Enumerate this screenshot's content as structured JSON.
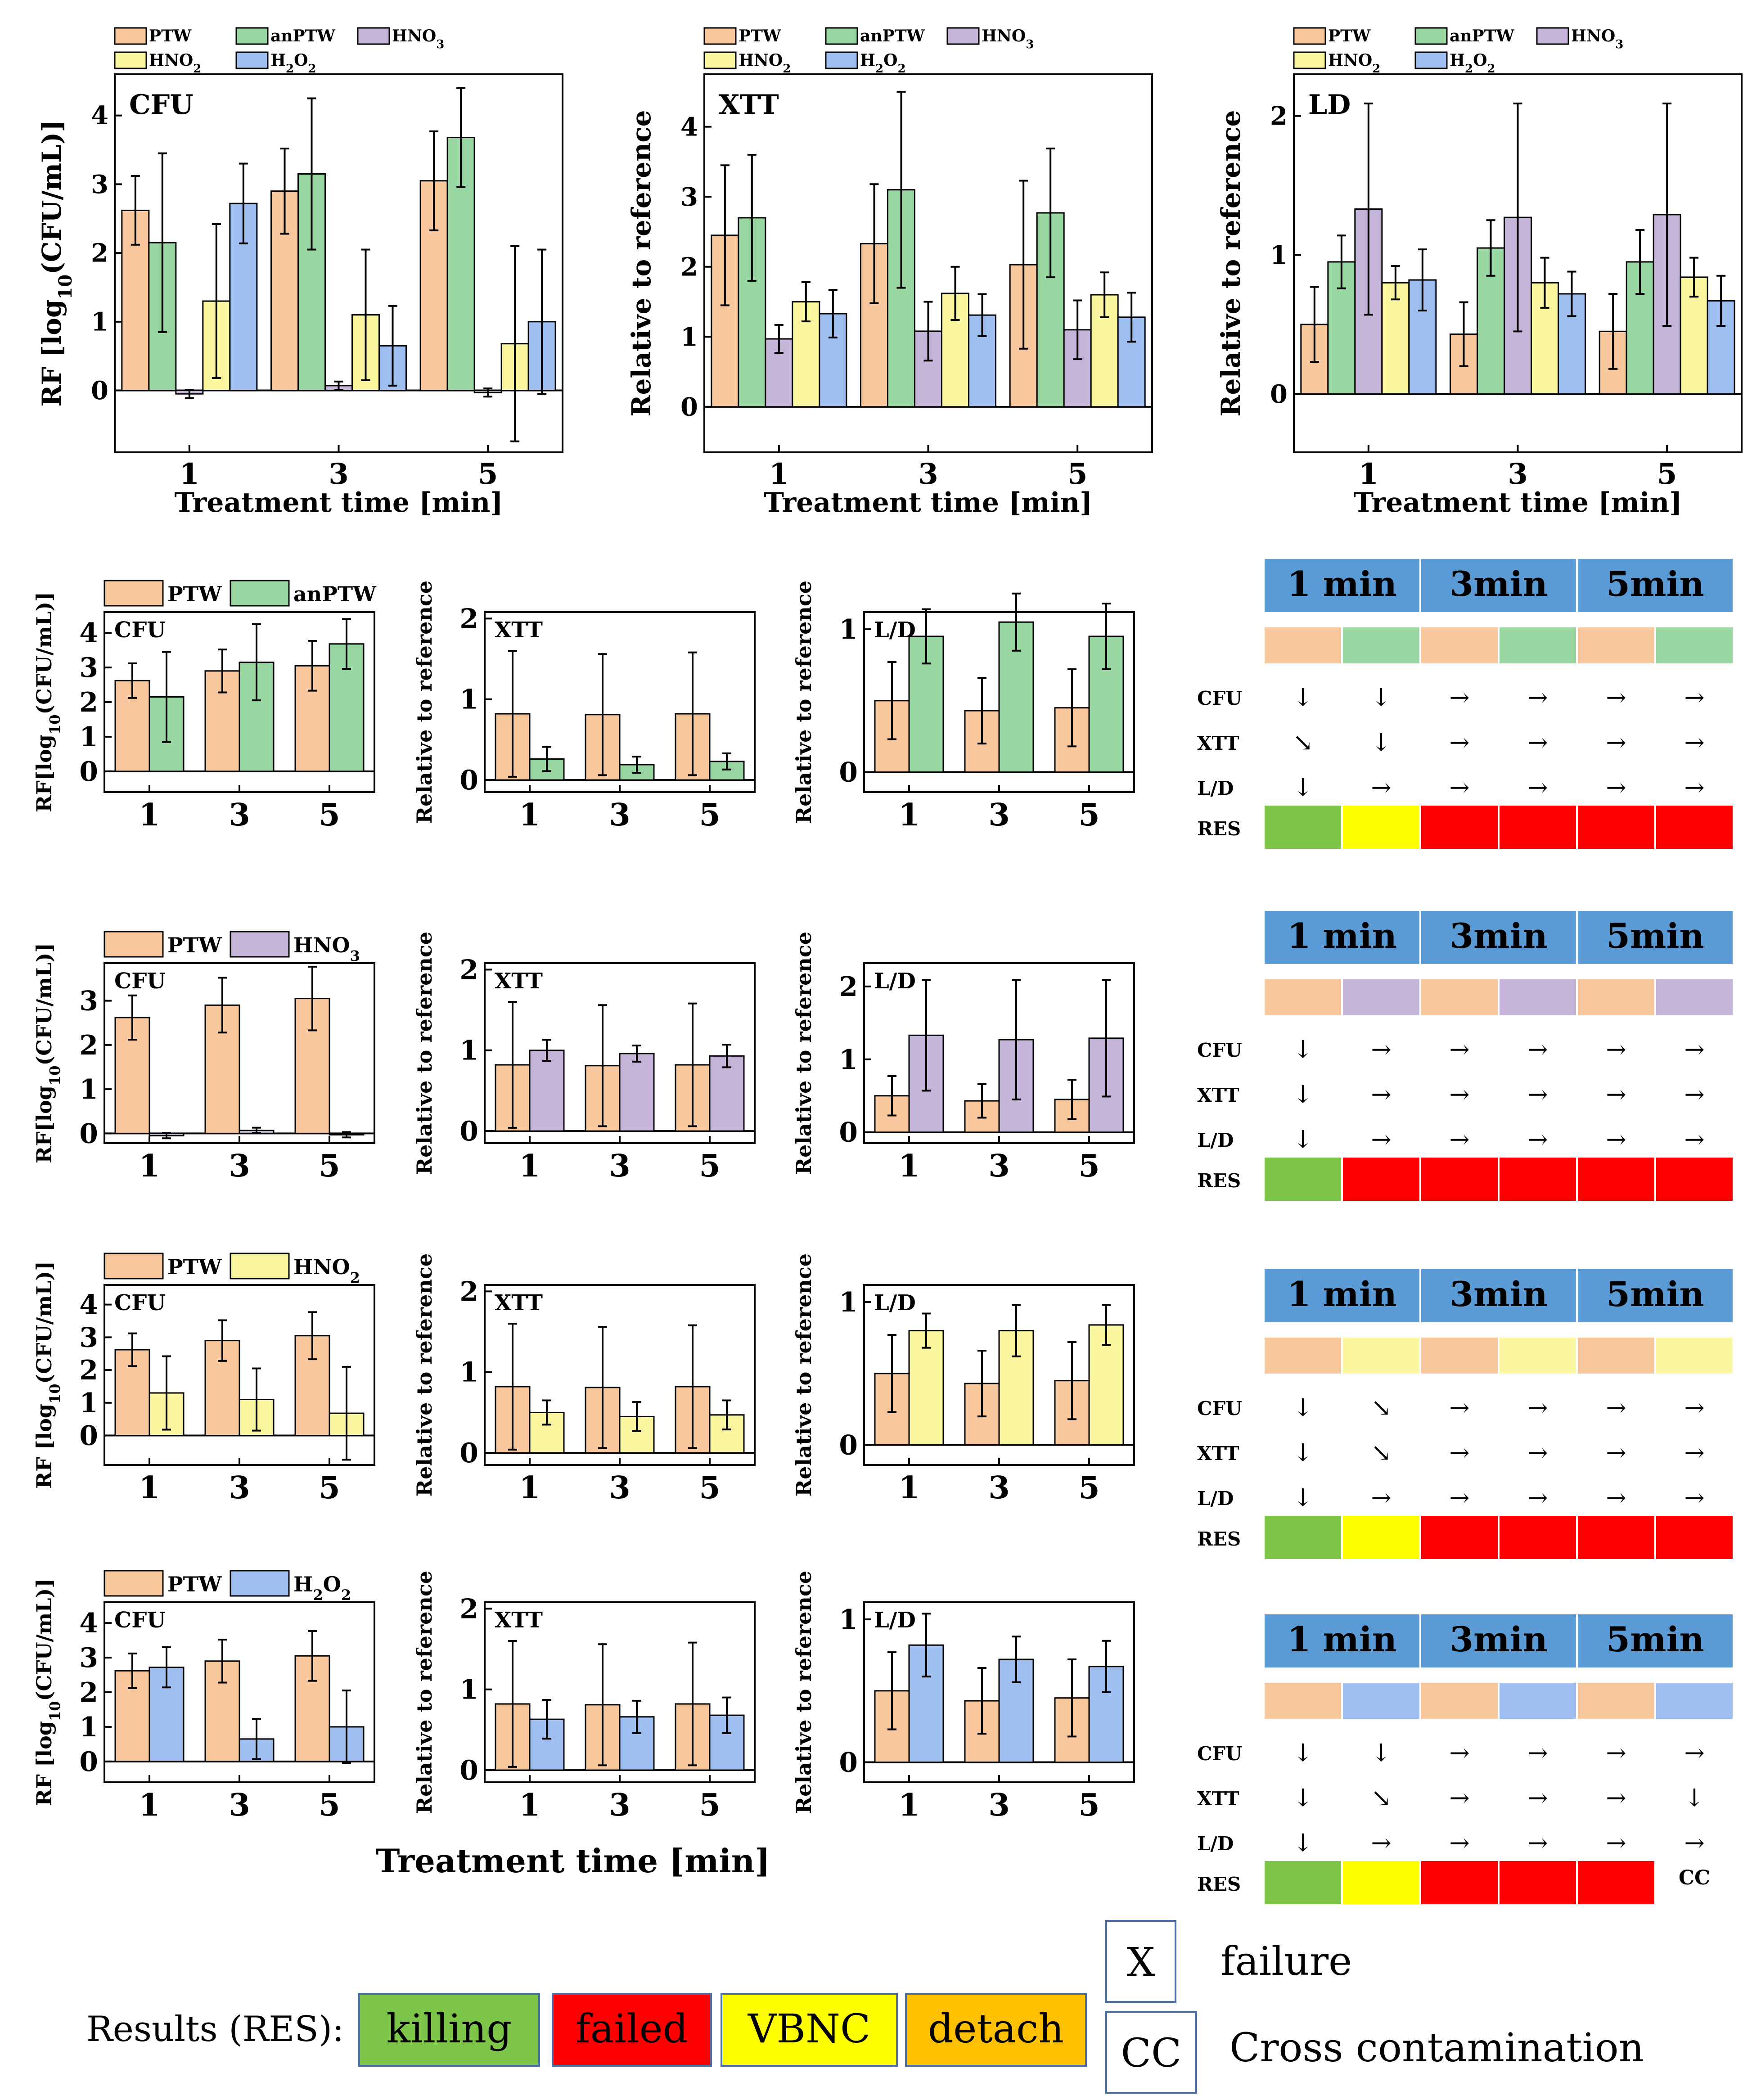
{
  "colors": {
    "PTW": "#f9c79e",
    "anPTW": "#98d6a2",
    "HNO3": "#c4b5d9",
    "HNO2": "#fbf6a0",
    "H2O2": "#9fbff0",
    "header": "#5b9bd5",
    "killing": "#7ec64a",
    "failed": "#ff0000",
    "VBNC": "#ffff00",
    "detach": "#ffc000"
  },
  "chart_data": [
    {
      "id": "top-cfu",
      "type": "bar",
      "panel_label": "CFU",
      "ylabel": "RF [log10(CFU/mL)]",
      "xlabel": "Treatment time [min]",
      "categories": [
        "1",
        "3",
        "5"
      ],
      "ylim": [
        -0.9,
        4.6
      ],
      "yticks": [
        0,
        1,
        2,
        3,
        4
      ],
      "legend": [
        "PTW",
        "anPTW",
        "HNO3",
        "HNO2",
        "H2O2"
      ],
      "series": [
        {
          "name": "PTW",
          "values": [
            2.62,
            2.9,
            3.05
          ],
          "err": [
            0.5,
            0.62,
            0.72
          ]
        },
        {
          "name": "anPTW",
          "values": [
            2.15,
            3.15,
            3.68
          ],
          "err": [
            1.3,
            1.1,
            0.72
          ]
        },
        {
          "name": "HNO3",
          "values": [
            -0.05,
            0.07,
            -0.03
          ],
          "err": [
            0.06,
            0.06,
            0.06
          ]
        },
        {
          "name": "HNO2",
          "values": [
            1.3,
            1.1,
            0.68
          ],
          "err": [
            1.12,
            0.95,
            1.42
          ]
        },
        {
          "name": "H2O2",
          "values": [
            2.72,
            0.65,
            1.0
          ],
          "err": [
            0.58,
            0.58,
            1.05
          ]
        }
      ]
    },
    {
      "id": "top-xtt",
      "type": "bar",
      "panel_label": "XTT",
      "ylabel": "Relative to reference",
      "xlabel": "Treatment time [min]",
      "categories": [
        "1",
        "3",
        "5"
      ],
      "ylim": [
        -0.65,
        4.75
      ],
      "yticks": [
        0,
        1,
        2,
        3,
        4
      ],
      "legend": [
        "PTW",
        "anPTW",
        "HNO3",
        "HNO2",
        "H2O2"
      ],
      "series": [
        {
          "name": "PTW",
          "values": [
            2.45,
            2.33,
            2.03
          ],
          "err": [
            1.0,
            0.85,
            1.2
          ]
        },
        {
          "name": "anPTW",
          "values": [
            2.7,
            3.1,
            2.77
          ],
          "err": [
            0.9,
            1.4,
            0.92
          ]
        },
        {
          "name": "HNO3",
          "values": [
            0.97,
            1.08,
            1.1
          ],
          "err": [
            0.2,
            0.42,
            0.42
          ]
        },
        {
          "name": "HNO2",
          "values": [
            1.5,
            1.62,
            1.6
          ],
          "err": [
            0.28,
            0.38,
            0.32
          ]
        },
        {
          "name": "H2O2",
          "values": [
            1.33,
            1.31,
            1.28
          ],
          "err": [
            0.34,
            0.3,
            0.35
          ]
        }
      ]
    },
    {
      "id": "top-ld",
      "type": "bar",
      "panel_label": "LD",
      "ylabel": "Relative to reference",
      "xlabel": "Treatment time [min]",
      "categories": [
        "1",
        "3",
        "5"
      ],
      "ylim": [
        -0.42,
        2.3
      ],
      "yticks": [
        0,
        1,
        2
      ],
      "legend": [
        "PTW",
        "anPTW",
        "HNO3",
        "HNO2",
        "H2O2"
      ],
      "series": [
        {
          "name": "PTW",
          "values": [
            0.5,
            0.43,
            0.45
          ],
          "err": [
            0.27,
            0.23,
            0.27
          ]
        },
        {
          "name": "anPTW",
          "values": [
            0.95,
            1.05,
            0.95
          ],
          "err": [
            0.19,
            0.2,
            0.23
          ]
        },
        {
          "name": "HNO3",
          "values": [
            1.33,
            1.27,
            1.29
          ],
          "err": [
            0.76,
            0.82,
            0.8
          ]
        },
        {
          "name": "HNO2",
          "values": [
            0.8,
            0.8,
            0.84
          ],
          "err": [
            0.12,
            0.18,
            0.14
          ]
        },
        {
          "name": "H2O2",
          "values": [
            0.82,
            0.72,
            0.67
          ],
          "err": [
            0.22,
            0.16,
            0.18
          ]
        }
      ]
    },
    {
      "id": "r1-cfu",
      "type": "bar",
      "panel_label": "CFU",
      "ylabel": "RF[log10(CFU/mL)]",
      "categories": [
        "1",
        "3",
        "5"
      ],
      "ylim": [
        -0.6,
        4.6
      ],
      "yticks": [
        0,
        1,
        2,
        3,
        4
      ],
      "legend": [
        "PTW",
        "anPTW"
      ],
      "series": [
        {
          "name": "PTW",
          "values": [
            2.62,
            2.9,
            3.05
          ],
          "err": [
            0.5,
            0.62,
            0.72
          ]
        },
        {
          "name": "anPTW",
          "values": [
            2.15,
            3.15,
            3.68
          ],
          "err": [
            1.3,
            1.1,
            0.72
          ]
        }
      ]
    },
    {
      "id": "r1-xtt",
      "type": "bar",
      "panel_label": "XTT",
      "ylabel": "Relative to reference",
      "categories": [
        "1",
        "3",
        "5"
      ],
      "ylim": [
        -0.15,
        2.08
      ],
      "yticks": [
        0,
        1,
        2
      ],
      "legend": [],
      "series": [
        {
          "name": "PTW",
          "values": [
            0.82,
            0.81,
            0.82
          ],
          "err": [
            0.78,
            0.75,
            0.76
          ]
        },
        {
          "name": "anPTW",
          "values": [
            0.26,
            0.19,
            0.23
          ],
          "err": [
            0.15,
            0.1,
            0.1
          ]
        }
      ]
    },
    {
      "id": "r1-ld",
      "type": "bar",
      "panel_label": "L/D",
      "ylabel": "Relative to reference",
      "categories": [
        "1",
        "3",
        "5"
      ],
      "ylim": [
        -0.14,
        1.12
      ],
      "yticks": [
        0,
        1
      ],
      "legend": [],
      "series": [
        {
          "name": "PTW",
          "values": [
            0.5,
            0.43,
            0.45
          ],
          "err": [
            0.27,
            0.23,
            0.27
          ]
        },
        {
          "name": "anPTW",
          "values": [
            0.95,
            1.05,
            0.95
          ],
          "err": [
            0.19,
            0.2,
            0.23
          ]
        }
      ]
    },
    {
      "id": "r2-cfu",
      "type": "bar",
      "panel_label": "CFU",
      "ylabel": "RF[log10(CFU/mL)]",
      "categories": [
        "1",
        "3",
        "5"
      ],
      "ylim": [
        -0.22,
        3.85
      ],
      "yticks": [
        0,
        1,
        2,
        3
      ],
      "legend": [
        "PTW",
        "HNO3"
      ],
      "series": [
        {
          "name": "PTW",
          "values": [
            2.62,
            2.9,
            3.05
          ],
          "err": [
            0.5,
            0.62,
            0.72
          ]
        },
        {
          "name": "HNO3",
          "values": [
            -0.05,
            0.07,
            -0.03
          ],
          "err": [
            0.06,
            0.06,
            0.06
          ]
        }
      ]
    },
    {
      "id": "r2-xtt",
      "type": "bar",
      "panel_label": "XTT",
      "ylabel": "Relative to reference",
      "categories": [
        "1",
        "3",
        "5"
      ],
      "ylim": [
        -0.15,
        2.08
      ],
      "yticks": [
        0,
        1,
        2
      ],
      "legend": [],
      "series": [
        {
          "name": "PTW",
          "values": [
            0.82,
            0.81,
            0.82
          ],
          "err": [
            0.78,
            0.75,
            0.76
          ]
        },
        {
          "name": "HNO3",
          "values": [
            1.0,
            0.96,
            0.93
          ],
          "err": [
            0.13,
            0.1,
            0.14
          ]
        }
      ]
    },
    {
      "id": "r2-ld",
      "type": "bar",
      "panel_label": "L/D",
      "ylabel": "Relative to reference",
      "categories": [
        "1",
        "3",
        "5"
      ],
      "ylim": [
        -0.15,
        2.32
      ],
      "yticks": [
        0,
        1,
        2
      ],
      "legend": [],
      "series": [
        {
          "name": "PTW",
          "values": [
            0.5,
            0.43,
            0.45
          ],
          "err": [
            0.27,
            0.23,
            0.27
          ]
        },
        {
          "name": "HNO3",
          "values": [
            1.33,
            1.27,
            1.29
          ],
          "err": [
            0.76,
            0.82,
            0.8
          ]
        }
      ]
    },
    {
      "id": "r3-cfu",
      "type": "bar",
      "panel_label": "CFU",
      "ylabel": "RF [log10(CFU/mL)]",
      "categories": [
        "1",
        "3",
        "5"
      ],
      "ylim": [
        -0.9,
        4.6
      ],
      "yticks": [
        0,
        1,
        2,
        3,
        4
      ],
      "legend": [
        "PTW",
        "HNO2"
      ],
      "series": [
        {
          "name": "PTW",
          "values": [
            2.62,
            2.9,
            3.05
          ],
          "err": [
            0.5,
            0.62,
            0.72
          ]
        },
        {
          "name": "HNO2",
          "values": [
            1.3,
            1.1,
            0.68
          ],
          "err": [
            1.12,
            0.95,
            1.42
          ]
        }
      ]
    },
    {
      "id": "r3-xtt",
      "type": "bar",
      "panel_label": "XTT",
      "ylabel": "Relative to reference",
      "categories": [
        "1",
        "3",
        "5"
      ],
      "ylim": [
        -0.15,
        2.08
      ],
      "yticks": [
        0,
        1,
        2
      ],
      "legend": [],
      "series": [
        {
          "name": "PTW",
          "values": [
            0.82,
            0.81,
            0.82
          ],
          "err": [
            0.78,
            0.75,
            0.76
          ]
        },
        {
          "name": "HNO2",
          "values": [
            0.5,
            0.45,
            0.47
          ],
          "err": [
            0.15,
            0.18,
            0.18
          ]
        }
      ]
    },
    {
      "id": "r3-ld",
      "type": "bar",
      "panel_label": "L/D",
      "ylabel": "Relative to reference",
      "categories": [
        "1",
        "3",
        "5"
      ],
      "ylim": [
        -0.14,
        1.12
      ],
      "yticks": [
        0,
        1
      ],
      "legend": [],
      "series": [
        {
          "name": "PTW",
          "values": [
            0.5,
            0.43,
            0.45
          ],
          "err": [
            0.27,
            0.23,
            0.27
          ]
        },
        {
          "name": "HNO2",
          "values": [
            0.8,
            0.8,
            0.84
          ],
          "err": [
            0.12,
            0.18,
            0.14
          ]
        }
      ]
    },
    {
      "id": "r4-cfu",
      "type": "bar",
      "panel_label": "CFU",
      "ylabel": "RF [log10(CFU/mL)]",
      "categories": [
        "1",
        "3",
        "5"
      ],
      "ylim": [
        -0.6,
        4.6
      ],
      "yticks": [
        0,
        1,
        2,
        3,
        4
      ],
      "legend": [
        "PTW",
        "H2O2"
      ],
      "series": [
        {
          "name": "PTW",
          "values": [
            2.62,
            2.9,
            3.05
          ],
          "err": [
            0.5,
            0.62,
            0.72
          ]
        },
        {
          "name": "H2O2",
          "values": [
            2.72,
            0.65,
            1.0
          ],
          "err": [
            0.58,
            0.58,
            1.05
          ]
        }
      ]
    },
    {
      "id": "r4-xtt",
      "type": "bar",
      "panel_label": "XTT",
      "ylabel": "Relative to reference",
      "categories": [
        "1",
        "3",
        "5"
      ],
      "ylim": [
        -0.15,
        2.08
      ],
      "yticks": [
        0,
        1,
        2
      ],
      "legend": [],
      "series": [
        {
          "name": "PTW",
          "values": [
            0.82,
            0.81,
            0.82
          ],
          "err": [
            0.78,
            0.75,
            0.76
          ]
        },
        {
          "name": "H2O2",
          "values": [
            0.63,
            0.66,
            0.68
          ],
          "err": [
            0.24,
            0.2,
            0.22
          ]
        }
      ]
    },
    {
      "id": "r4-ld",
      "type": "bar",
      "panel_label": "L/D",
      "ylabel": "Relative to reference",
      "categories": [
        "1",
        "3",
        "5"
      ],
      "ylim": [
        -0.14,
        1.12
      ],
      "yticks": [
        0,
        1
      ],
      "legend": [],
      "series": [
        {
          "name": "PTW",
          "values": [
            0.5,
            0.43,
            0.45
          ],
          "err": [
            0.27,
            0.23,
            0.27
          ]
        },
        {
          "name": "H2O2",
          "values": [
            0.82,
            0.72,
            0.67
          ],
          "err": [
            0.22,
            0.16,
            0.18
          ]
        }
      ]
    }
  ],
  "bottom_xlabel": "Treatment time [min]",
  "result_tables": [
    {
      "headers": [
        "1 min",
        "3min",
        "5min"
      ],
      "pair": [
        "PTW",
        "anPTW"
      ],
      "row_labels": [
        "CFU",
        "XTT",
        "L/D",
        "RES"
      ],
      "arrows": [
        [
          "↓",
          "↓",
          "→",
          "→",
          "→",
          "→"
        ],
        [
          "↘",
          "↓",
          "→",
          "→",
          "→",
          "→"
        ],
        [
          "↓",
          "→",
          "→",
          "→",
          "→",
          "→"
        ]
      ],
      "res": [
        "killing",
        "VBNC",
        "failed",
        "failed",
        "failed",
        "failed"
      ]
    },
    {
      "headers": [
        "1 min",
        "3min",
        "5min"
      ],
      "pair": [
        "PTW",
        "HNO3"
      ],
      "row_labels": [
        "CFU",
        "XTT",
        "L/D",
        "RES"
      ],
      "arrows": [
        [
          "↓",
          "→",
          "→",
          "→",
          "→",
          "→"
        ],
        [
          "↓",
          "→",
          "→",
          "→",
          "→",
          "→"
        ],
        [
          "↓",
          "→",
          "→",
          "→",
          "→",
          "→"
        ]
      ],
      "res": [
        "killing",
        "failed",
        "failed",
        "failed",
        "failed",
        "failed"
      ]
    },
    {
      "headers": [
        "1 min",
        "3min",
        "5min"
      ],
      "pair": [
        "PTW",
        "HNO2"
      ],
      "row_labels": [
        "CFU",
        "XTT",
        "L/D",
        "RES"
      ],
      "arrows": [
        [
          "↓",
          "↘",
          "→",
          "→",
          "→",
          "→"
        ],
        [
          "↓",
          "↘",
          "→",
          "→",
          "→",
          "→"
        ],
        [
          "↓",
          "→",
          "→",
          "→",
          "→",
          "→"
        ]
      ],
      "res": [
        "killing",
        "VBNC",
        "failed",
        "failed",
        "failed",
        "failed"
      ]
    },
    {
      "headers": [
        "1 min",
        "3min",
        "5min"
      ],
      "pair": [
        "PTW",
        "H2O2"
      ],
      "row_labels": [
        "CFU",
        "XTT",
        "L/D",
        "RES"
      ],
      "arrows": [
        [
          "↓",
          "↓",
          "→",
          "→",
          "→",
          "→"
        ],
        [
          "↓",
          "↘",
          "→",
          "→",
          "→",
          "↓"
        ],
        [
          "↓",
          "→",
          "→",
          "→",
          "→",
          "→"
        ]
      ],
      "res": [
        "killing",
        "VBNC",
        "failed",
        "failed",
        "failed",
        "CC"
      ]
    }
  ],
  "key": {
    "results_label": "Results (RES):",
    "items": [
      {
        "name": "killing",
        "label": "killing"
      },
      {
        "name": "failed",
        "label": "failed"
      },
      {
        "name": "VBNC",
        "label": "VBNC"
      },
      {
        "name": "detach",
        "label": "detach"
      }
    ],
    "x_symbol": "X",
    "x_text": "failure",
    "cc_symbol": "CC",
    "cc_text": "Cross contamination"
  }
}
